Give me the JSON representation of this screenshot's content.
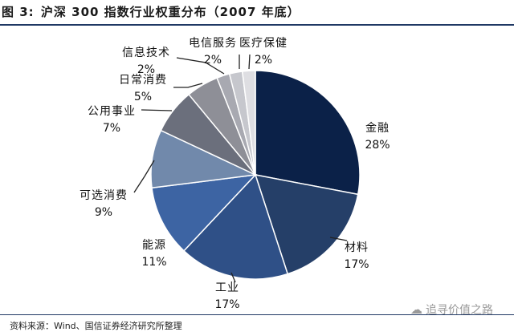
{
  "figure": {
    "label": "图 3:",
    "title": "沪深 300 指数行业权重分布（2007 年底）",
    "source": "资料来源：Wind、国信证券经济研究所整理",
    "watermark": "追寻价值之路"
  },
  "colors": {
    "title_rule": "#1f3864",
    "slices": [
      "#0b2148",
      "#253f68",
      "#2f5087",
      "#3d64a3",
      "#7189ab",
      "#6b6f7c",
      "#8e8f97",
      "#a8a9b1",
      "#c6c7cd",
      "#dedee2"
    ]
  },
  "chart_data": {
    "type": "pie",
    "title": "沪深 300 指数行业权重分布（2007 年底）",
    "unit": "%",
    "slices": [
      {
        "label": "金融",
        "value": 28,
        "display": "28%"
      },
      {
        "label": "材料",
        "value": 17,
        "display": "17%"
      },
      {
        "label": "工业",
        "value": 17,
        "display": "17%"
      },
      {
        "label": "能源",
        "value": 11,
        "display": "11%"
      },
      {
        "label": "可选消费",
        "value": 9,
        "display": "9%"
      },
      {
        "label": "公用事业",
        "value": 7,
        "display": "7%"
      },
      {
        "label": "日常消费",
        "value": 5,
        "display": "5%"
      },
      {
        "label": "信息技术",
        "value": 2,
        "display": "2%"
      },
      {
        "label": "电信服务",
        "value": 2,
        "display": "2%"
      },
      {
        "label": "医疗保健",
        "value": 2,
        "display": "2%"
      }
    ]
  }
}
